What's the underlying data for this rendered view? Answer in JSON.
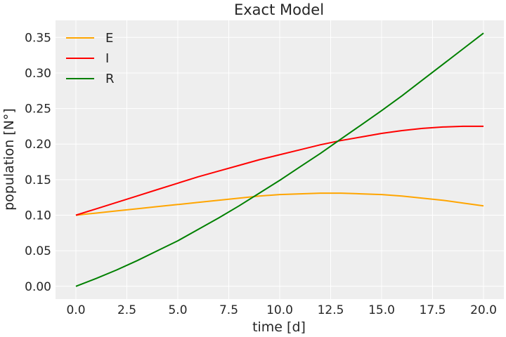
{
  "chart_data": {
    "type": "line",
    "title": "Exact Model",
    "xlabel": "time [d]",
    "ylabel": "population [N°]",
    "xlim": [
      -1.0,
      21.0
    ],
    "ylim": [
      -0.018,
      0.374
    ],
    "xticks": [
      0.0,
      2.5,
      5.0,
      7.5,
      10.0,
      12.5,
      15.0,
      17.5,
      20.0
    ],
    "xtick_labels": [
      "0.0",
      "2.5",
      "5.0",
      "7.5",
      "10.0",
      "12.5",
      "15.0",
      "17.5",
      "20.0"
    ],
    "yticks": [
      0.0,
      0.05,
      0.1,
      0.15,
      0.2,
      0.25,
      0.3,
      0.35
    ],
    "ytick_labels": [
      "0.00",
      "0.05",
      "0.10",
      "0.15",
      "0.20",
      "0.25",
      "0.30",
      "0.35"
    ],
    "grid": true,
    "legend_position": "upper-left",
    "x": [
      0,
      1,
      2,
      3,
      4,
      5,
      6,
      7,
      8,
      9,
      10,
      11,
      12,
      13,
      14,
      15,
      16,
      17,
      18,
      19,
      20
    ],
    "series": [
      {
        "name": "E",
        "color": "#ffa500",
        "values": [
          0.1,
          0.103,
          0.106,
          0.109,
          0.112,
          0.115,
          0.118,
          0.121,
          0.124,
          0.127,
          0.129,
          0.13,
          0.131,
          0.131,
          0.13,
          0.129,
          0.127,
          0.124,
          0.121,
          0.117,
          0.113
        ]
      },
      {
        "name": "I",
        "color": "#ff0000",
        "values": [
          0.1,
          0.109,
          0.118,
          0.127,
          0.136,
          0.145,
          0.154,
          0.162,
          0.17,
          0.178,
          0.185,
          0.192,
          0.199,
          0.205,
          0.21,
          0.215,
          0.219,
          0.222,
          0.224,
          0.225,
          0.225
        ]
      },
      {
        "name": "R",
        "color": "#008000",
        "values": [
          0.0,
          0.011,
          0.023,
          0.036,
          0.05,
          0.064,
          0.08,
          0.096,
          0.113,
          0.131,
          0.149,
          0.168,
          0.187,
          0.207,
          0.227,
          0.247,
          0.268,
          0.29,
          0.312,
          0.334,
          0.356
        ]
      }
    ]
  }
}
